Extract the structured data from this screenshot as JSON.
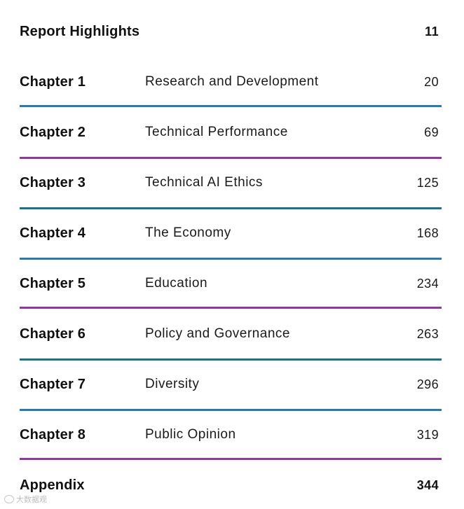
{
  "highlights": {
    "label": "Report Highlights",
    "page": "11"
  },
  "chapters": [
    {
      "label": "Chapter 1",
      "title": "Research and Development",
      "page": "20"
    },
    {
      "label": "Chapter 2",
      "title": "Technical Performance",
      "page": "69"
    },
    {
      "label": "Chapter 3",
      "title": "Technical AI Ethics",
      "page": "125"
    },
    {
      "label": "Chapter 4",
      "title": "The Economy",
      "page": "168"
    },
    {
      "label": "Chapter 5",
      "title": "Education",
      "page": "234"
    },
    {
      "label": "Chapter 6",
      "title": "Policy and Governance",
      "page": "263"
    },
    {
      "label": "Chapter 7",
      "title": "Diversity",
      "page": "296"
    },
    {
      "label": "Chapter 8",
      "title": "Public Opinion",
      "page": "319"
    }
  ],
  "appendix": {
    "label": "Appendix",
    "page": "344"
  },
  "colors": {
    "blue_rule": "#2e7aa6",
    "purple_rule": "#8a3c96",
    "teal_rule": "#1f7280"
  },
  "watermark": {
    "text": "大数据观"
  }
}
